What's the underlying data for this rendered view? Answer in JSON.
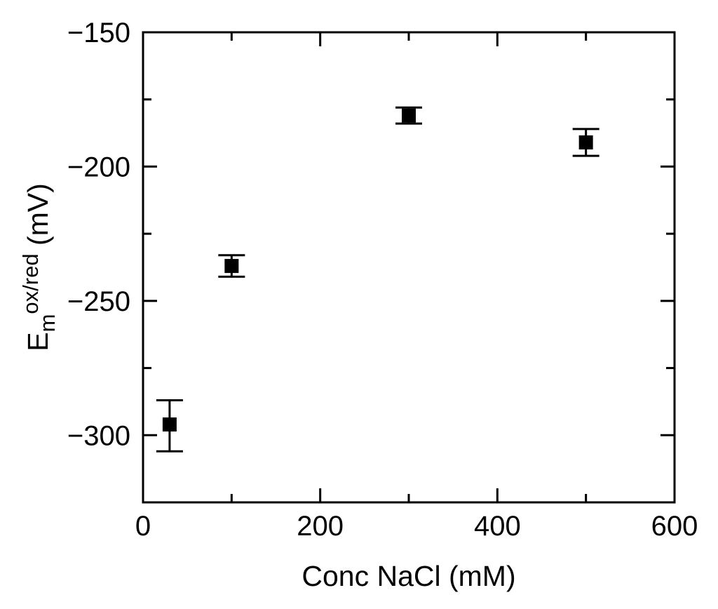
{
  "chart_data": {
    "type": "scatter",
    "title": "",
    "xlabel": "Conc NaCl (mM)",
    "ylabel": {
      "main": "E",
      "subscript": "m",
      "superscript": "ox/red",
      "unit": " (mV)"
    },
    "xlim": [
      0,
      600
    ],
    "ylim": [
      -325,
      -150
    ],
    "x_ticks": [
      0,
      200,
      400,
      600
    ],
    "x_tick_labels": [
      "0",
      "200",
      "400",
      "600"
    ],
    "y_ticks": [
      -150,
      -200,
      -250,
      -300
    ],
    "y_tick_labels": [
      "−150",
      "−200",
      "−250",
      "−300"
    ],
    "grid": false,
    "legend": "none",
    "marker": "square",
    "marker_color": "#000000",
    "points": [
      {
        "x": 30,
        "y": -296,
        "err_low": -306,
        "err_high": -287
      },
      {
        "x": 100,
        "y": -237,
        "err_low": -241,
        "err_high": -233
      },
      {
        "x": 300,
        "y": -181,
        "err_low": -184,
        "err_high": -178
      },
      {
        "x": 500,
        "y": -191,
        "err_low": -196,
        "err_high": -186
      }
    ]
  }
}
